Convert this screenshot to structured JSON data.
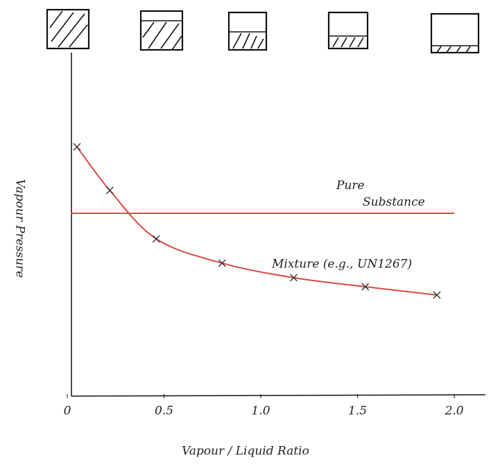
{
  "chart_data": {
    "type": "line",
    "x_label": "Vapour / Liquid Ratio",
    "y_label": "Vapour Pressure",
    "xlim": [
      0,
      2.1
    ],
    "ylim": [
      0,
      100
    ],
    "xticks": [
      0,
      0.5,
      {
        "value": 1,
        "label": "1.0"
      },
      1.5,
      {
        "value": 2,
        "label": "2.0"
      }
    ],
    "series": [
      {
        "name": "Pure Substance",
        "color": "#d94a45",
        "x": [
          0.02,
          2.0
        ],
        "values": [
          52.8,
          52.8
        ]
      },
      {
        "name": "Mixture (e.g., UN1267)",
        "color": "#d94a45",
        "x": [
          0.05,
          0.22,
          0.46,
          0.8,
          1.17,
          1.54,
          1.91
        ],
        "values": [
          72,
          59.4,
          45.4,
          38.4,
          34.2,
          31.6,
          29.2
        ]
      }
    ]
  }
}
